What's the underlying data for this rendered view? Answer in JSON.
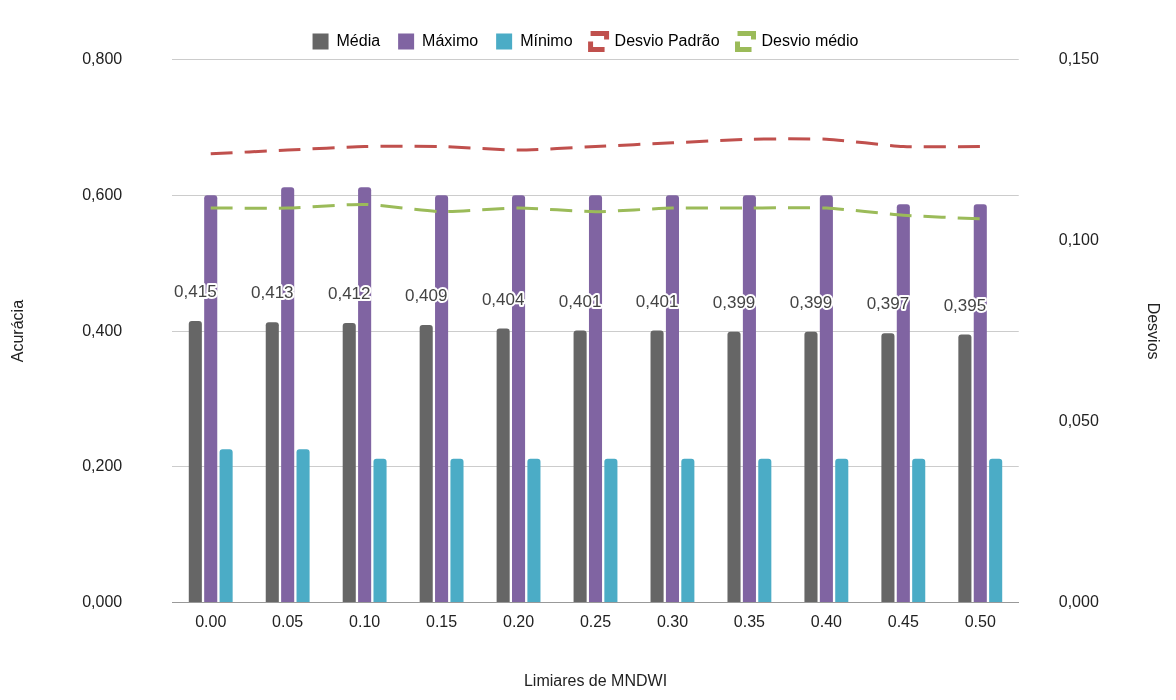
{
  "chart_data": {
    "type": "bar",
    "xlabel": "Limiares de MNDWI",
    "ylabel": "Acurácia",
    "y2label": "Desvios",
    "categories": [
      "0.00",
      "0.05",
      "0.10",
      "0.15",
      "0.20",
      "0.25",
      "0.30",
      "0.35",
      "0.40",
      "0.45",
      "0.50"
    ],
    "series": [
      {
        "name": "Média",
        "color": "#666666",
        "values": [
          0.415,
          0.413,
          0.412,
          0.409,
          0.404,
          0.401,
          0.401,
          0.399,
          0.399,
          0.397,
          0.395
        ],
        "value_labels": [
          "0,415",
          "0,413",
          "0,412",
          "0,409",
          "0,404",
          "0,401",
          "0,401",
          "0,399",
          "0,399",
          "0,397",
          "0,395"
        ]
      },
      {
        "name": "Máximo",
        "color": "#8064a2",
        "values": [
          0.6,
          0.612,
          0.612,
          0.6,
          0.6,
          0.6,
          0.6,
          0.6,
          0.6,
          0.587,
          0.587
        ]
      },
      {
        "name": "Mínimo",
        "color": "#4bacc6",
        "values": [
          0.226,
          0.226,
          0.212,
          0.212,
          0.212,
          0.212,
          0.212,
          0.212,
          0.212,
          0.212,
          0.212
        ]
      },
      {
        "name": "Desvio Padrão",
        "type": "line",
        "axis": "y2",
        "line_style": "dashed",
        "color": "#c0504d",
        "values": [
          0.124,
          0.125,
          0.126,
          0.126,
          0.125,
          0.126,
          0.127,
          0.128,
          0.128,
          0.126,
          0.126
        ]
      },
      {
        "name": "Desvio médio",
        "type": "line",
        "axis": "y2",
        "line_style": "dashed",
        "color": "#9bbb59",
        "values": [
          0.109,
          0.109,
          0.11,
          0.108,
          0.109,
          0.108,
          0.109,
          0.109,
          0.109,
          0.107,
          0.106
        ]
      }
    ],
    "ylim": [
      0,
      0.8
    ],
    "yticks": [
      {
        "value": 0,
        "label": "0,000"
      },
      {
        "value": 0.2,
        "label": "0,200"
      },
      {
        "value": 0.4,
        "label": "0,400"
      },
      {
        "value": 0.6,
        "label": "0,600"
      },
      {
        "value": 0.8,
        "label": "0,800"
      }
    ],
    "y2lim": [
      0,
      0.15
    ],
    "y2ticks": [
      {
        "value": 0,
        "label": "0,000"
      },
      {
        "value": 0.05,
        "label": "0,050"
      },
      {
        "value": 0.1,
        "label": "0,100"
      },
      {
        "value": 0.15,
        "label": "0,150"
      }
    ],
    "grid": "y",
    "legend": "top",
    "marker": "none"
  }
}
